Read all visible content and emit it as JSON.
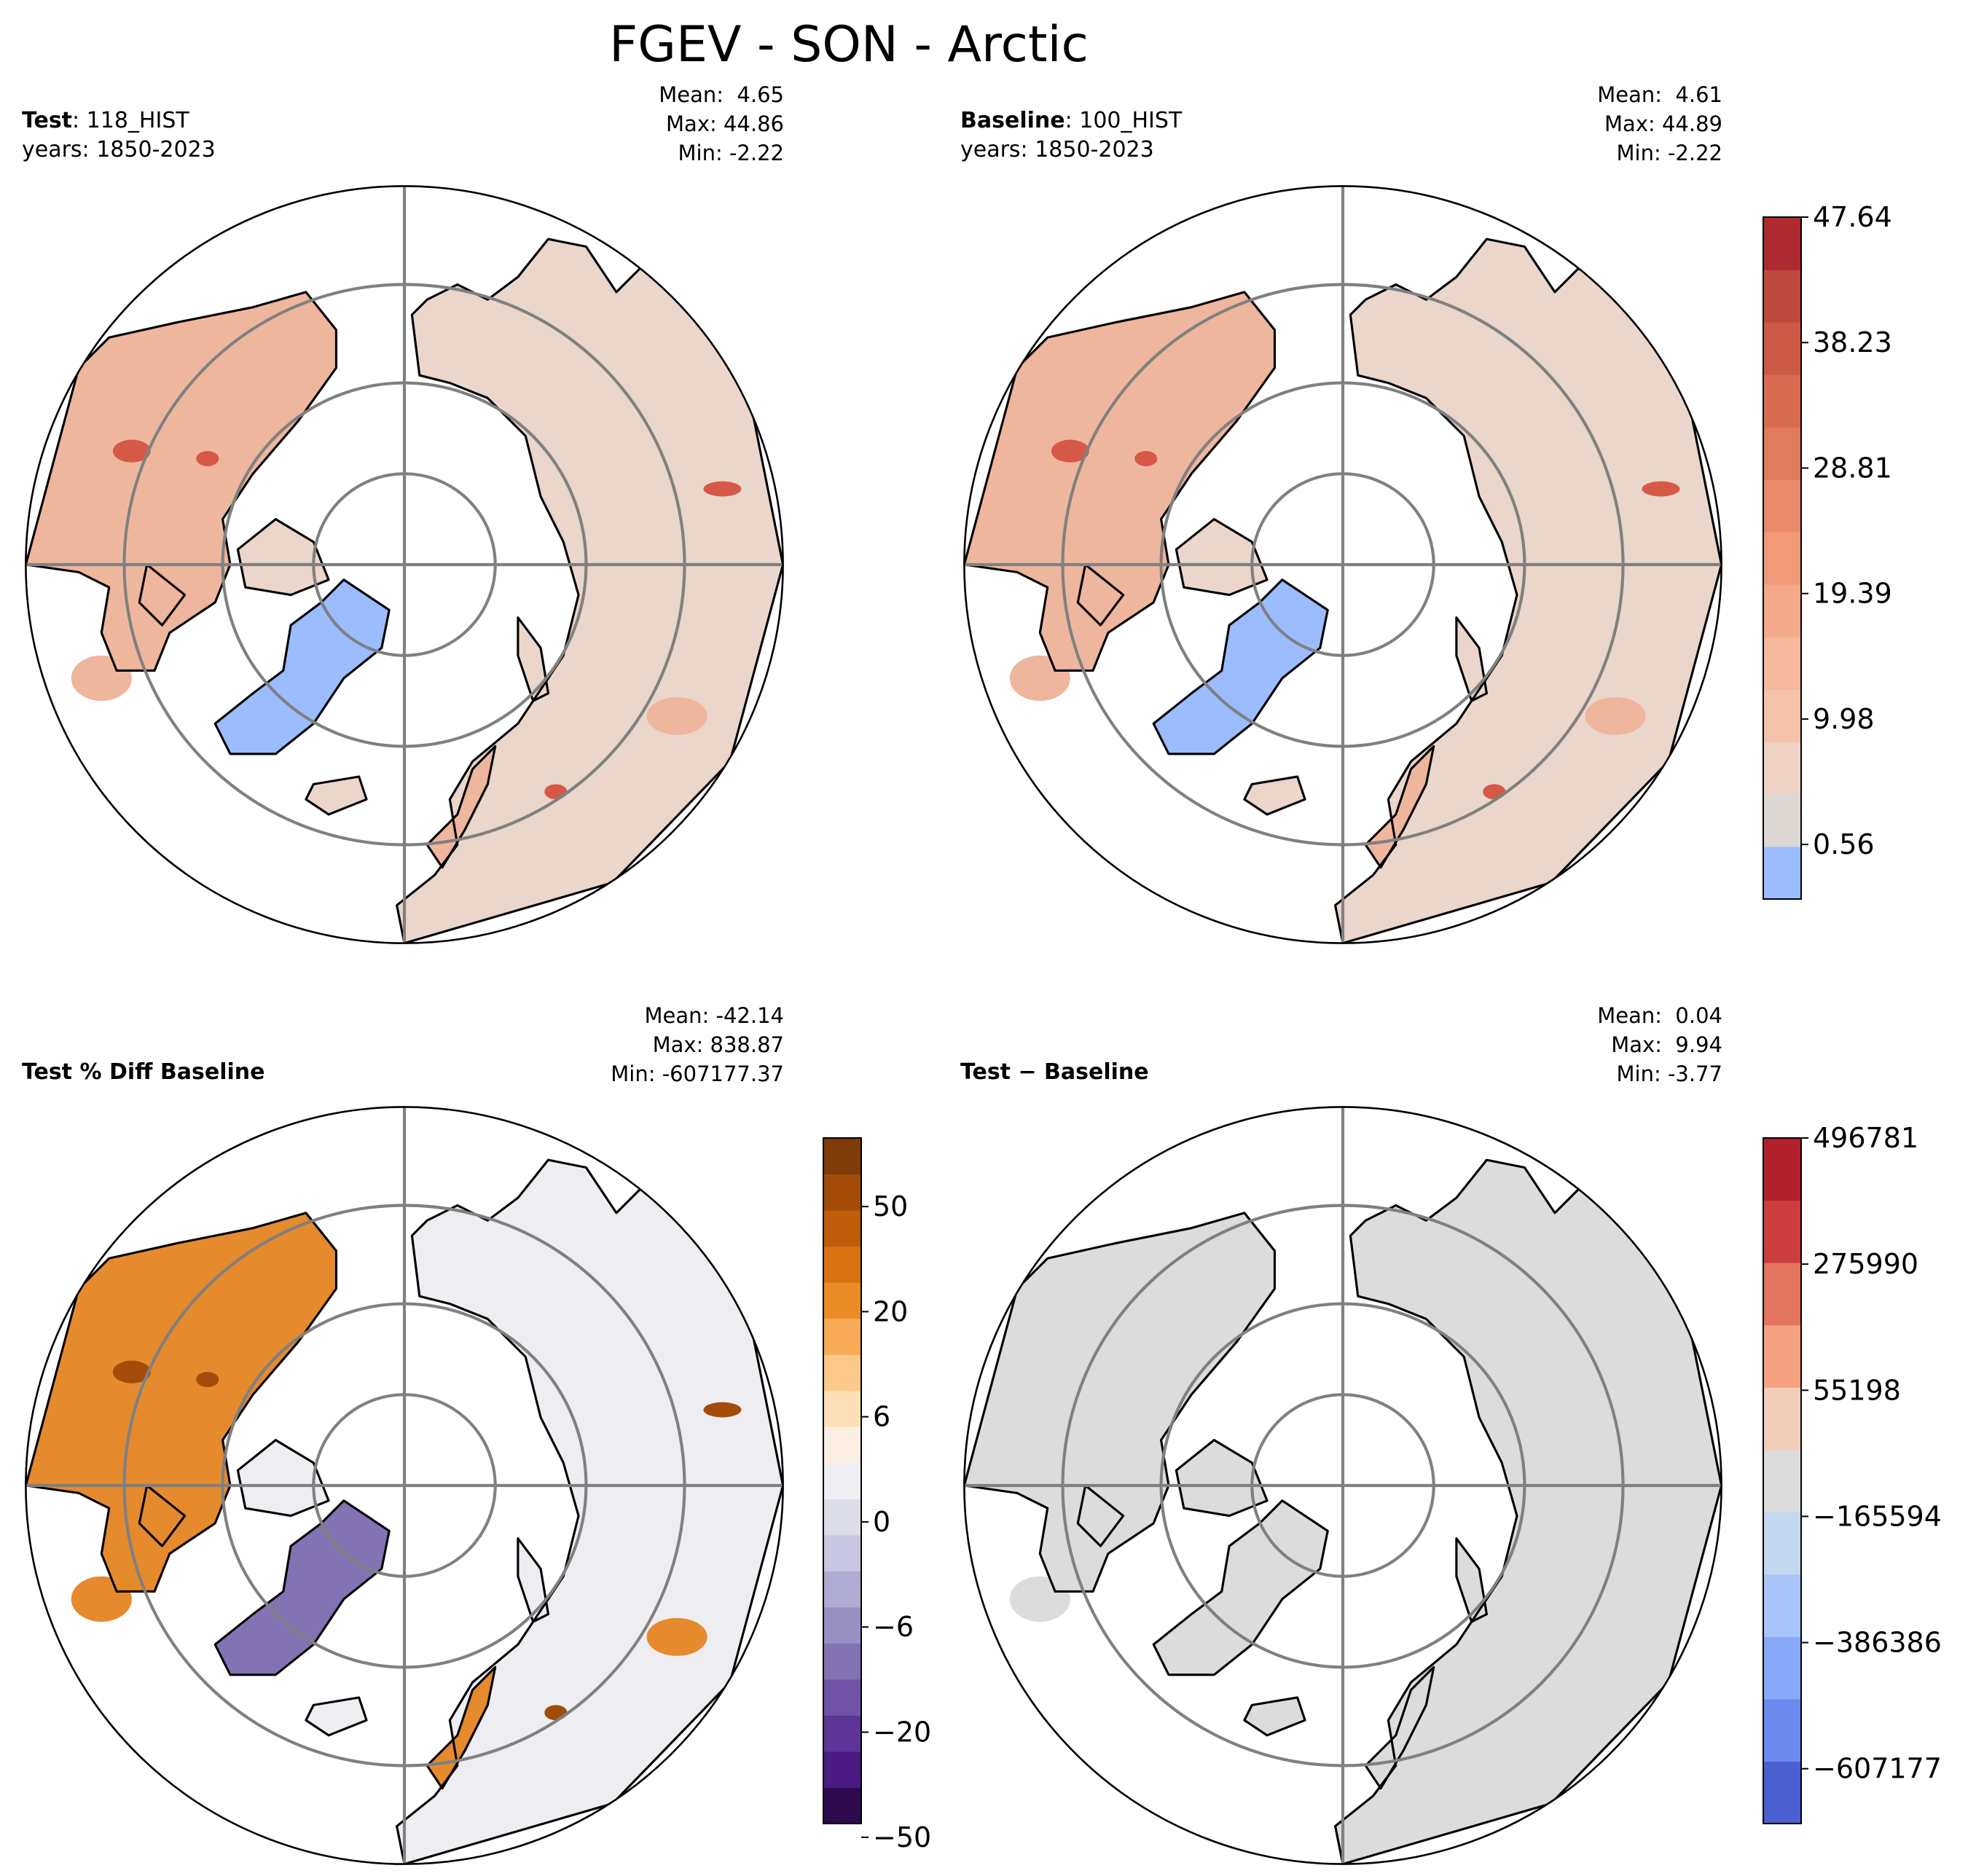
{
  "figure": {
    "title": "FGEV - SON - Arctic"
  },
  "panels": {
    "test": {
      "label_bold": "Test",
      "label_rest": ": 118_HIST",
      "years": "years: 1850-2023",
      "mean": "Mean:  4.65",
      "max": "Max: 44.86",
      "min": "Min: -2.22"
    },
    "baseline": {
      "label_bold": "Baseline",
      "label_rest": ": 100_HIST",
      "years": "years: 1850-2023",
      "mean": "Mean:  4.61",
      "max": "Max: 44.89",
      "min": "Min: -2.22"
    },
    "pct_diff": {
      "label_bold": "Test % Diff Baseline",
      "mean": "Mean: -42.14",
      "max": "Max: 838.87",
      "min": "Min: -607177.37"
    },
    "diff": {
      "label_bold": "Test − Baseline",
      "mean": "Mean:  0.04",
      "max": "Max:  9.94",
      "min": "Min: -3.77"
    }
  },
  "colorbars": {
    "main": {
      "ticks": [
        "47.64",
        "38.23",
        "28.81",
        "19.39",
        "9.98",
        "0.56"
      ],
      "colors": [
        "#9bbcff",
        "#ddd8d4",
        "#efd3c5",
        "#f4c3aa",
        "#f6b89c",
        "#f4a98a",
        "#f09a7a",
        "#ea8a6c",
        "#e27a5e",
        "#d86a52",
        "#cc5a47",
        "#be4a3d",
        "#ae2b32"
      ]
    },
    "pct": {
      "ticks": [
        "50",
        "20",
        "6",
        "0",
        "−6",
        "−20",
        "−50"
      ],
      "colors": [
        "#2d0a4e",
        "#4b1a82",
        "#5d3597",
        "#6f53a7",
        "#8373b4",
        "#9890c2",
        "#b0abd2",
        "#c8c6e0",
        "#dddde9",
        "#eeeef2",
        "#fbefe3",
        "#fee0b8",
        "#fdc98a",
        "#f8ab57",
        "#ec8c27",
        "#d97312",
        "#c15d0a",
        "#a24c07",
        "#7f3b08"
      ]
    },
    "diff": {
      "ticks": [
        "496781",
        "275990",
        "55198",
        "−165594",
        "−386386",
        "−607177"
      ],
      "colors": [
        "#4a5fd0",
        "#6a8af0",
        "#88a8f8",
        "#a8c4f8",
        "#c4d8f2",
        "#dcdcdc",
        "#f2cdb8",
        "#f4a282",
        "#e27460",
        "#cc3e3e",
        "#b2202c"
      ]
    }
  },
  "map": {
    "ocean_fill": "#ffffff",
    "grid_color": "#808080",
    "coast_color": "#000000",
    "panel_colors": {
      "test": {
        "land": "#ead6cb",
        "warm": "#efb69e",
        "hot": "#d65846",
        "ice": "#9bbcff"
      },
      "baseline": {
        "land": "#ead6cb",
        "warm": "#efb69e",
        "hot": "#d65846",
        "ice": "#9bbcff"
      },
      "pct_diff": {
        "land": "#eeeef2",
        "warm": "#e68a2e",
        "hot": "#a24c07",
        "ice": "#8373b4"
      },
      "diff": {
        "land": "#dcdcdc",
        "warm": "#dcdcdc",
        "hot": "#dcdcdc",
        "ice": "#dcdcdc"
      }
    }
  }
}
